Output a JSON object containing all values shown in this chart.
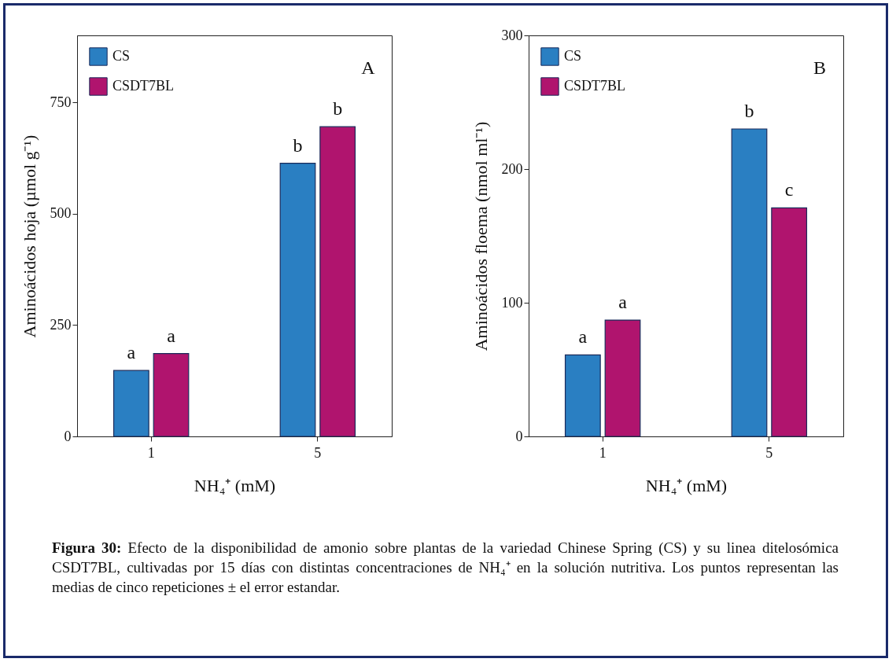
{
  "chart_data": [
    {
      "type": "bar",
      "categories": [
        "1",
        "5"
      ],
      "xlabel": "NH₄⁺ (mM)",
      "ylabel": "Aminoácidos hoja (µmol g⁻¹)",
      "ylim": [
        0,
        900
      ],
      "yticks": [
        0,
        250,
        500,
        750
      ],
      "legend": "top left",
      "series": [
        {
          "name": "CS",
          "color": "#2a7fc2",
          "values": [
            148,
            613
          ]
        },
        {
          "name": "CSDT7BL",
          "color": "#b0146e",
          "values": [
            186,
            695
          ]
        }
      ],
      "annotations": [
        "A",
        {
          "text": "a",
          "x": "1",
          "y": 148
        },
        {
          "text": "a",
          "x": "1",
          "y": 186
        },
        {
          "text": "b",
          "x": "5",
          "y": 613
        },
        {
          "text": "b",
          "x": "5",
          "y": 695
        },
        "Figura 30: Efecto de la disponibilidad de amonio sobre plantas de la variedad Chinese Spring  (CS) y su linea ditelosómica CSDT7BL, cultivadas por 15 días con distintas concentraciones de NH₄⁺ en la solución nutritiva. Los puntos representan las medias de cinco repeticiones ± el error estandar."
      ]
    },
    {
      "type": "bar",
      "categories": [
        "1",
        "5"
      ],
      "xlabel": "NH₄⁺ (mM)",
      "ylabel": "Aminoácidos floema (nmol ml⁻¹)",
      "ylim": [
        0,
        300
      ],
      "yticks": [
        0,
        100,
        200,
        300
      ],
      "legend": "top left",
      "series": [
        {
          "name": "CS",
          "color": "#2a7fc2",
          "values": [
            61,
            230
          ]
        },
        {
          "name": "CSDT7BL",
          "color": "#b0146e",
          "values": [
            87,
            171
          ]
        }
      ],
      "annotations": [
        "B",
        {
          "text": "a",
          "x": "1",
          "y": 61
        },
        {
          "text": "a",
          "x": "1",
          "y": 87
        },
        {
          "text": "b",
          "x": "5",
          "y": 230
        },
        {
          "text": "c",
          "x": "5",
          "y": 171
        }
      ]
    }
  ]
}
